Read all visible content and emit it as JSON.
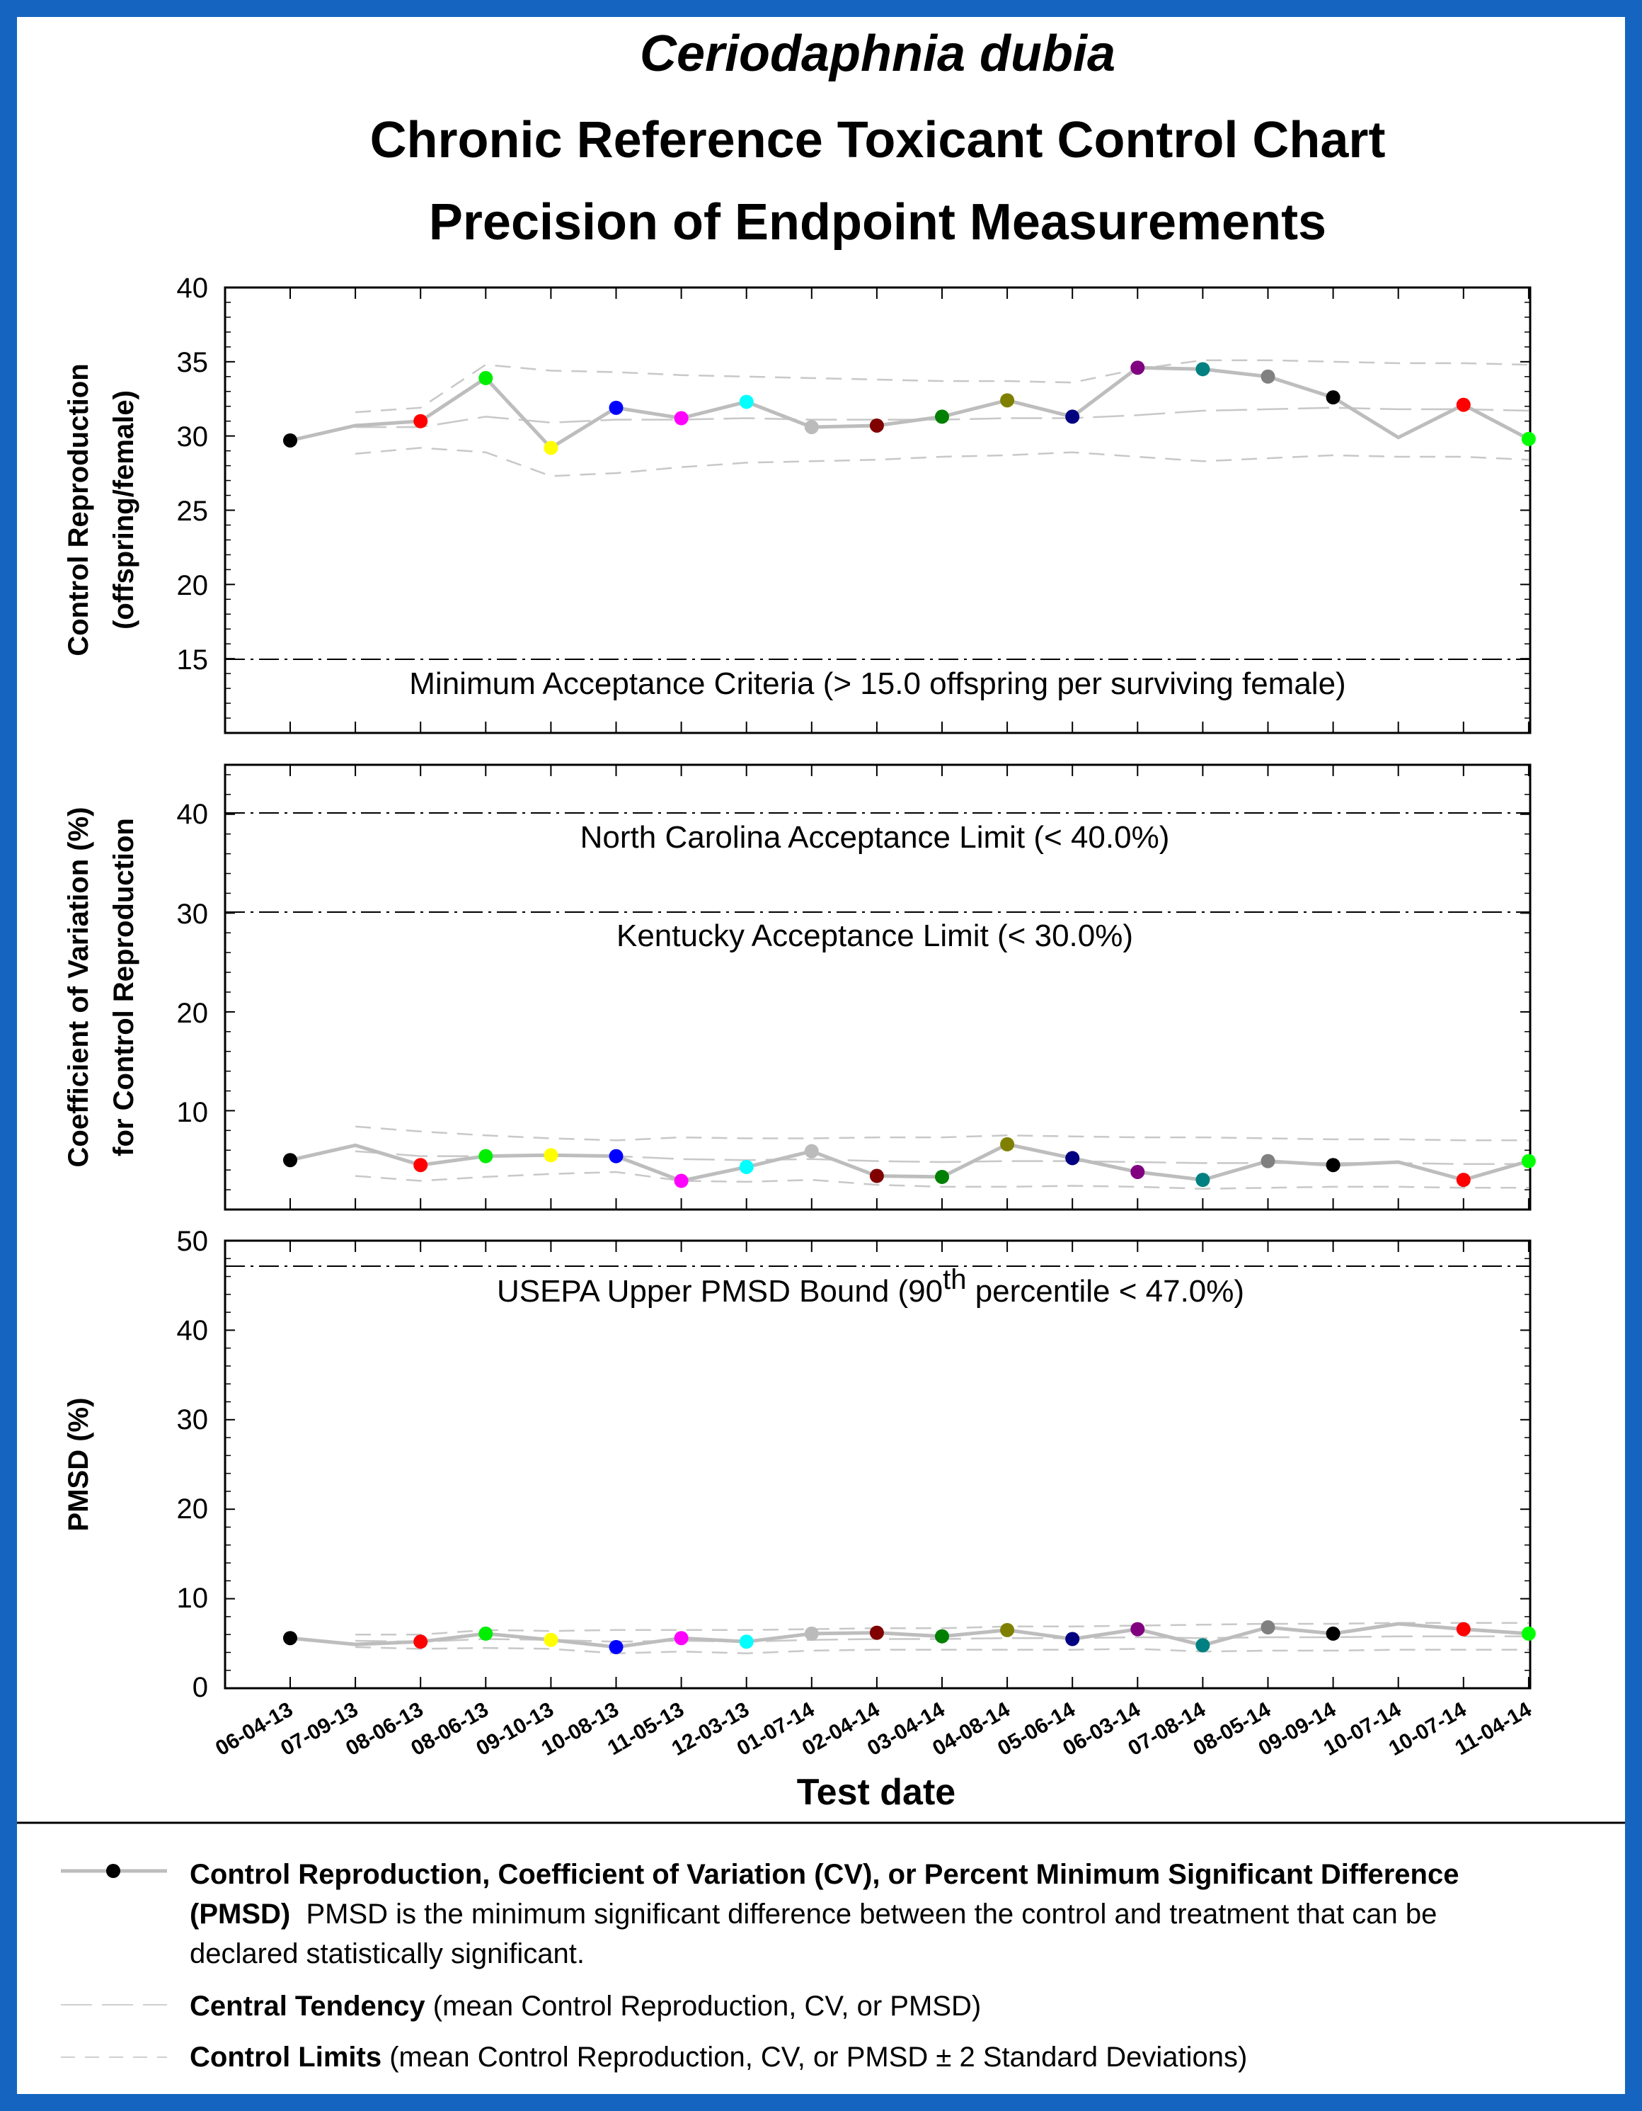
{
  "titles": {
    "species": "Ceriodaphnia dubia",
    "line1": "Chronic Reference Toxicant Control Chart",
    "line2": "Precision of Endpoint Measurements"
  },
  "x_axis": {
    "label": "Test date",
    "dates": [
      "06-04-13",
      "07-09-13",
      "08-06-13",
      "08-06-13",
      "09-10-13",
      "10-08-13",
      "11-05-13",
      "12-03-13",
      "01-07-14",
      "02-04-14",
      "03-04-14",
      "04-08-14",
      "05-06-14",
      "06-03-14",
      "07-08-14",
      "08-05-14",
      "09-09-14",
      "10-07-14",
      "10-07-14",
      "11-04-14"
    ]
  },
  "point_colors": [
    "#000000",
    null,
    "#ff0000",
    "#00ee00",
    "#ffff00",
    "#0000ff",
    "#ff00ff",
    "#00ffff",
    "#bbbbbb",
    "#800000",
    "#008000",
    "#808000",
    "#000080",
    "#800080",
    "#008080",
    "#808080",
    "#000000",
    null,
    "#ff0000",
    "#00ff00"
  ],
  "panels": {
    "reproduction": {
      "ylabel_1": "Control Reproduction",
      "ylabel_2": "(offspring/female)",
      "ticks": [
        "15",
        "20",
        "25",
        "30",
        "35",
        "40"
      ],
      "annotation": "Minimum Acceptance Criteria (> 15.0 offspring per surviving female)"
    },
    "cv": {
      "ylabel_1": "Coefficient of Variation (%)",
      "ylabel_2": "for Control Reproduction",
      "ticks": [
        "10",
        "20",
        "30",
        "40"
      ],
      "annotation_nc": "North Carolina Acceptance Limit (< 40.0%)",
      "annotation_ky": "Kentucky Acceptance Limit (< 30.0%)"
    },
    "pmsd": {
      "ylabel_1": "PMSD (%)",
      "ticks": [
        "0",
        "10",
        "20",
        "30",
        "40",
        "50"
      ],
      "annotation_pre": "USEPA Upper PMSD Bound (90",
      "annotation_sup": "th",
      "annotation_post": " percentile < 47.0%)"
    }
  },
  "legend": {
    "item1_bold": "Control Reproduction, Coefficient of Variation (CV), or Percent Minimum Significant Difference",
    "item1_bold2": "(PMSD)",
    "item1_rest": "  PMSD is the minimum significant difference between the control and treatment that can be",
    "item1_rest2": "declared statistically significant.",
    "item2_bold": "Central Tendency",
    "item2_rest": " (mean Control Reproduction, CV, or PMSD)",
    "item3_bold": "Control Limits",
    "item3_rest": " (mean Control Reproduction, CV, or PMSD ± 2 Standard Deviations)"
  },
  "chart_data": [
    {
      "type": "line",
      "ylabel": "Control Reproduction (offspring/female)",
      "ylim": [
        10,
        40
      ],
      "x": [
        "06-04-13",
        "07-09-13",
        "08-06-13",
        "08-06-13",
        "09-10-13",
        "10-08-13",
        "11-05-13",
        "12-03-13",
        "01-07-14",
        "02-04-14",
        "03-04-14",
        "04-08-14",
        "05-06-14",
        "06-03-14",
        "07-08-14",
        "08-05-14",
        "09-09-14",
        "10-07-14",
        "10-07-14",
        "11-04-14"
      ],
      "reference_lines": [
        {
          "y": 15,
          "label": "Minimum Acceptance Criteria (> 15.0 offspring per surviving female)"
        }
      ],
      "series": [
        {
          "name": "Control Reproduction",
          "values": [
            29.7,
            30.7,
            31.0,
            33.9,
            29.2,
            31.9,
            31.2,
            32.3,
            30.6,
            30.7,
            31.3,
            32.4,
            31.3,
            34.6,
            34.5,
            34.0,
            32.6,
            29.9,
            32.1,
            29.8
          ]
        },
        {
          "name": "Central Tendency",
          "values": [
            null,
            30.6,
            30.6,
            31.3,
            30.9,
            31.1,
            31.1,
            31.2,
            31.1,
            31.1,
            31.1,
            31.2,
            31.2,
            31.4,
            31.7,
            31.8,
            31.9,
            31.8,
            31.8,
            31.7
          ]
        },
        {
          "name": "Upper Control Limit",
          "values": [
            null,
            31.6,
            31.9,
            34.8,
            34.4,
            34.3,
            34.1,
            34.0,
            33.9,
            33.8,
            33.7,
            33.7,
            33.6,
            34.5,
            35.1,
            35.1,
            35.0,
            34.9,
            34.9,
            34.8
          ]
        },
        {
          "name": "Lower Control Limit",
          "values": [
            null,
            28.8,
            29.2,
            28.9,
            27.3,
            27.5,
            27.9,
            28.2,
            28.3,
            28.4,
            28.6,
            28.7,
            28.9,
            28.6,
            28.3,
            28.5,
            28.7,
            28.6,
            28.6,
            28.4
          ]
        }
      ]
    },
    {
      "type": "line",
      "ylabel": "Coefficient of Variation (%) for Control Reproduction",
      "ylim": [
        0,
        45
      ],
      "x": [
        "06-04-13",
        "07-09-13",
        "08-06-13",
        "08-06-13",
        "09-10-13",
        "10-08-13",
        "11-05-13",
        "12-03-13",
        "01-07-14",
        "02-04-14",
        "03-04-14",
        "04-08-14",
        "05-06-14",
        "06-03-14",
        "07-08-14",
        "08-05-14",
        "09-09-14",
        "10-07-14",
        "10-07-14",
        "11-04-14"
      ],
      "reference_lines": [
        {
          "y": 40,
          "label": "North Carolina Acceptance Limit (< 40.0%)"
        },
        {
          "y": 30,
          "label": "Kentucky Acceptance Limit (< 30.0%)"
        }
      ],
      "series": [
        {
          "name": "Coefficient of Variation",
          "values": [
            5.0,
            6.5,
            4.5,
            5.4,
            5.5,
            5.4,
            2.9,
            4.3,
            5.9,
            3.4,
            3.3,
            6.6,
            5.2,
            3.8,
            3.0,
            4.9,
            4.5,
            4.8,
            3.0,
            4.9
          ]
        },
        {
          "name": "Central Tendency",
          "values": [
            null,
            5.9,
            5.4,
            5.4,
            5.4,
            5.4,
            5.1,
            5.0,
            5.1,
            4.9,
            4.8,
            4.9,
            4.9,
            4.8,
            4.7,
            4.7,
            4.7,
            4.7,
            4.6,
            4.6
          ]
        },
        {
          "name": "Upper Control Limit",
          "values": [
            null,
            8.4,
            7.9,
            7.5,
            7.2,
            7.0,
            7.3,
            7.2,
            7.2,
            7.3,
            7.3,
            7.5,
            7.4,
            7.3,
            7.3,
            7.2,
            7.1,
            7.1,
            7.0,
            7.0
          ]
        },
        {
          "name": "Lower Control Limit",
          "values": [
            null,
            3.4,
            2.9,
            3.3,
            3.6,
            3.8,
            2.9,
            2.8,
            3.0,
            2.5,
            2.3,
            2.3,
            2.4,
            2.3,
            2.1,
            2.2,
            2.3,
            2.3,
            2.2,
            2.2
          ]
        }
      ]
    },
    {
      "type": "line",
      "ylabel": "PMSD (%)",
      "ylim": [
        0,
        50
      ],
      "x": [
        "06-04-13",
        "07-09-13",
        "08-06-13",
        "08-06-13",
        "09-10-13",
        "10-08-13",
        "11-05-13",
        "12-03-13",
        "01-07-14",
        "02-04-14",
        "03-04-14",
        "04-08-14",
        "05-06-14",
        "06-03-14",
        "07-08-14",
        "08-05-14",
        "09-09-14",
        "10-07-14",
        "10-07-14",
        "11-04-14"
      ],
      "reference_lines": [
        {
          "y": 47,
          "label": "USEPA Upper PMSD Bound (90th percentile < 47.0%)"
        }
      ],
      "series": [
        {
          "name": "PMSD",
          "values": [
            5.6,
            4.9,
            5.2,
            6.1,
            5.4,
            4.6,
            5.6,
            5.2,
            6.1,
            6.2,
            5.8,
            6.5,
            5.5,
            6.6,
            4.8,
            6.8,
            6.1,
            7.2,
            6.6,
            6.1
          ]
        },
        {
          "name": "Central Tendency",
          "values": [
            null,
            5.3,
            5.2,
            5.5,
            5.4,
            5.2,
            5.3,
            5.2,
            5.4,
            5.5,
            5.5,
            5.6,
            5.6,
            5.7,
            5.6,
            5.7,
            5.7,
            5.8,
            5.8,
            5.8
          ]
        },
        {
          "name": "Upper Control Limit",
          "values": [
            null,
            6.0,
            6.0,
            6.5,
            6.4,
            6.5,
            6.5,
            6.5,
            6.6,
            6.7,
            6.7,
            6.9,
            6.9,
            7.0,
            7.1,
            7.2,
            7.2,
            7.3,
            7.3,
            7.3
          ]
        },
        {
          "name": "Lower Control Limit",
          "values": [
            null,
            4.6,
            4.4,
            4.5,
            4.4,
            3.9,
            4.1,
            3.9,
            4.2,
            4.3,
            4.3,
            4.3,
            4.3,
            4.4,
            4.1,
            4.2,
            4.2,
            4.3,
            4.3,
            4.3
          ]
        }
      ]
    }
  ]
}
